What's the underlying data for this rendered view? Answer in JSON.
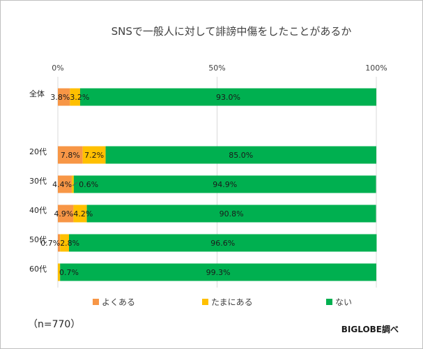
{
  "chart_data": {
    "type": "bar",
    "orientation": "horizontal",
    "stacked": true,
    "title": "SNSで一般人に対して誹謗中傷をしたことがあるか",
    "x_ticks": [
      "0%",
      "50%",
      "100%"
    ],
    "xlim": [
      0,
      100
    ],
    "grid": true,
    "legend_position": "bottom",
    "categories": [
      "全体",
      "20代",
      "30代",
      "40代",
      "50代",
      "60代"
    ],
    "series": [
      {
        "name": "よくある",
        "color": "#f79646",
        "values": [
          3.8,
          7.8,
          4.4,
          4.9,
          0.7,
          0.0
        ]
      },
      {
        "name": "たまにある",
        "color": "#ffc000",
        "values": [
          3.2,
          7.2,
          0.6,
          4.2,
          2.8,
          0.7
        ]
      },
      {
        "name": "ない",
        "color": "#00b050",
        "values": [
          93.0,
          85.0,
          94.9,
          90.8,
          96.6,
          99.3
        ]
      }
    ],
    "data_labels": [
      [
        "3.8%",
        "3.2%",
        "93.0%"
      ],
      [
        "7.8%",
        "7.2%",
        "85.0%"
      ],
      [
        "4.4%",
        "0.6%",
        "94.9%"
      ],
      [
        "4.9%",
        "4.2%",
        "90.8%"
      ],
      [
        "0.7%",
        "2.8%",
        "96.6%"
      ],
      [
        "",
        "0.7%",
        "99.3%"
      ]
    ]
  },
  "footer": {
    "sample_note": "（n=770）",
    "credit": "BIGLOBE調べ"
  }
}
